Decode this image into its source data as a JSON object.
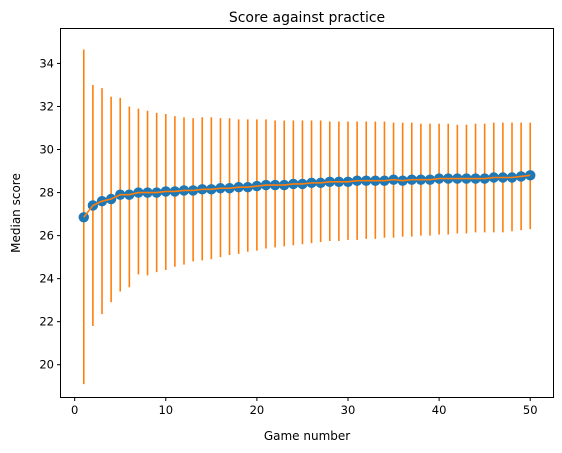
{
  "chart_data": {
    "type": "scatter",
    "title": "Score against practice",
    "xlabel": "Game number",
    "ylabel": "Median score",
    "xlim": [
      -1.5,
      52.5
    ],
    "ylim": [
      18.5,
      35.6
    ],
    "x_ticks": [
      0,
      10,
      20,
      30,
      40,
      50
    ],
    "x_tick_labels": [
      "0",
      "10",
      "20",
      "30",
      "40",
      "50"
    ],
    "y_ticks": [
      20,
      22,
      24,
      26,
      28,
      30,
      32,
      34
    ],
    "y_tick_labels": [
      "20",
      "22",
      "24",
      "26",
      "28",
      "30",
      "32",
      "34"
    ],
    "grid": false,
    "legend": false,
    "colors": {
      "points": "#1f77b4",
      "line": "#ff7f0e",
      "error_bars": "#ff7f0e"
    },
    "series": [
      {
        "x": [
          1,
          2,
          3,
          4,
          5,
          6,
          7,
          8,
          9,
          10,
          11,
          12,
          13,
          14,
          15,
          16,
          17,
          18,
          19,
          20,
          21,
          22,
          23,
          24,
          25,
          26,
          27,
          28,
          29,
          30,
          31,
          32,
          33,
          34,
          35,
          36,
          37,
          38,
          39,
          40,
          41,
          42,
          43,
          44,
          45,
          46,
          47,
          48,
          49,
          50
        ],
        "y": [
          26.85,
          27.4,
          27.6,
          27.7,
          27.9,
          27.9,
          28.0,
          28.0,
          28.0,
          28.05,
          28.05,
          28.1,
          28.1,
          28.15,
          28.15,
          28.2,
          28.2,
          28.25,
          28.25,
          28.3,
          28.35,
          28.35,
          28.35,
          28.4,
          28.4,
          28.45,
          28.45,
          28.5,
          28.5,
          28.5,
          28.55,
          28.55,
          28.55,
          28.55,
          28.6,
          28.55,
          28.6,
          28.6,
          28.6,
          28.65,
          28.65,
          28.65,
          28.65,
          28.65,
          28.65,
          28.7,
          28.7,
          28.7,
          28.75,
          28.8
        ],
        "y_upper": [
          34.65,
          33.0,
          32.85,
          32.45,
          32.4,
          32.0,
          31.9,
          31.8,
          31.7,
          31.65,
          31.55,
          31.5,
          31.45,
          31.5,
          31.5,
          31.45,
          31.45,
          31.4,
          31.4,
          31.4,
          31.4,
          31.35,
          31.35,
          31.35,
          31.35,
          31.35,
          31.35,
          31.3,
          31.3,
          31.3,
          31.3,
          31.3,
          31.3,
          31.3,
          31.25,
          31.25,
          31.25,
          31.2,
          31.2,
          31.2,
          31.2,
          31.15,
          31.15,
          31.2,
          31.2,
          31.25,
          31.25,
          31.25,
          31.25,
          31.25
        ],
        "y_lower": [
          19.1,
          21.8,
          22.35,
          22.9,
          23.4,
          23.6,
          24.2,
          24.15,
          24.3,
          24.4,
          24.55,
          24.65,
          24.8,
          24.85,
          24.9,
          25.0,
          25.1,
          25.15,
          25.25,
          25.3,
          25.4,
          25.45,
          25.5,
          25.55,
          25.6,
          25.65,
          25.7,
          25.75,
          25.75,
          25.8,
          25.8,
          25.85,
          25.85,
          25.9,
          25.9,
          25.95,
          25.95,
          26.0,
          26.0,
          26.05,
          26.05,
          26.1,
          26.1,
          26.15,
          26.15,
          26.15,
          26.15,
          26.2,
          26.25,
          26.3
        ]
      }
    ]
  }
}
